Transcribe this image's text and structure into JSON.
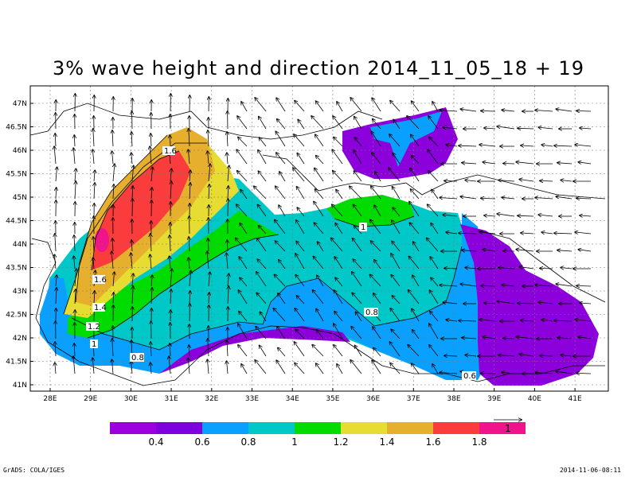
{
  "title": "3% wave height and direction 2014_11_05_18 + 19",
  "map": {
    "lat_ticks": [
      "47N",
      "46.5N",
      "46N",
      "45.5N",
      "45N",
      "44.5N",
      "44N",
      "43.5N",
      "43N",
      "42.5N",
      "42N",
      "41.5N",
      "41N"
    ],
    "lon_ticks": [
      "28E",
      "29E",
      "30E",
      "31E",
      "32E",
      "33E",
      "34E",
      "35E",
      "36E",
      "37E",
      "38E",
      "39E",
      "40E",
      "41E"
    ],
    "contour_labels": [
      "1.6",
      "1.6",
      "1.4",
      "1.2",
      "1",
      "0.8",
      "1",
      "0.8",
      "0.6"
    ],
    "wind_direction": "arrows point mostly toward north-northwest"
  },
  "colorbar": {
    "labels": [
      "0.4",
      "0.6",
      "0.8",
      "1",
      "1.2",
      "1.4",
      "1.6",
      "1.8"
    ],
    "colors": [
      "#9B00DE",
      "#7F00DE",
      "#0AA0FF",
      "#00C8C8",
      "#00DC00",
      "#E6DC32",
      "#E6AF2D",
      "#FA3C3C",
      "#F0148C"
    ],
    "vector_ref_label": "1"
  },
  "footer": {
    "left": "GrADS: COLA/IGES",
    "right": "2014-11-06-08:11"
  }
}
